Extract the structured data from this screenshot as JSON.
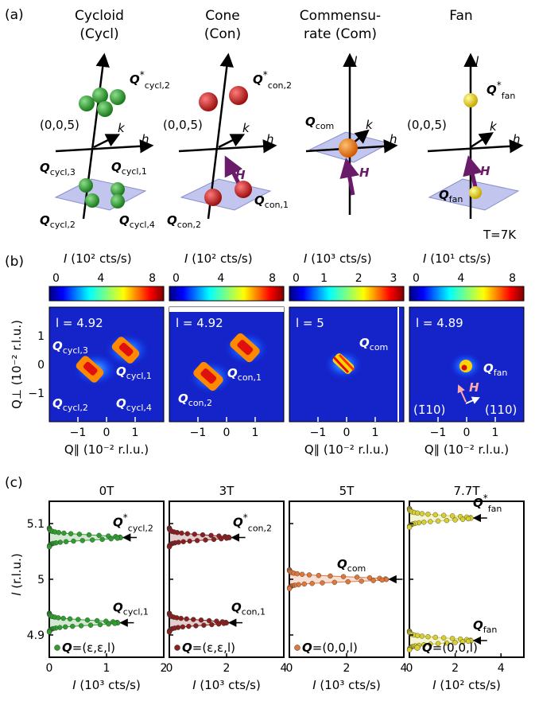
{
  "panel_labels": {
    "a": "(a)",
    "b": "(b)",
    "c": "(c)"
  },
  "phases": [
    {
      "line1": "Cycloid",
      "line2": "(Cycl)"
    },
    {
      "line1": "Cone",
      "line2": "(Con)"
    },
    {
      "line1": "Commensu-",
      "line2": "rate (Com)"
    },
    {
      "line1": "Fan",
      "line2": ""
    }
  ],
  "axes3d": {
    "l": "l",
    "h": "h",
    "k": "k",
    "H": "H",
    "origin": "(0,0,5)"
  },
  "q_labels": {
    "cycl_star": "cycl,2",
    "cycl1": "cycl,1",
    "cycl2": "cycl,2",
    "cycl3": "cycl,3",
    "cycl4": "cycl,4",
    "con_star": "con,2",
    "con1": "con,1",
    "con2": "con,2",
    "com": "com",
    "fan_star": "fan",
    "fan": "fan",
    "Q": "Q",
    "star": "*"
  },
  "temperature": "T=7K",
  "colorbars": [
    {
      "unit": "(10² cts/s)",
      "ticks": [
        "0",
        "4",
        "8"
      ]
    },
    {
      "unit": "(10² cts/s)",
      "ticks": [
        "0",
        "4",
        "8"
      ]
    },
    {
      "unit": "(10³ cts/s)",
      "ticks": [
        "0",
        "1",
        "2",
        "3"
      ]
    },
    {
      "unit": "(10¹ cts/s)",
      "ticks": [
        "0",
        "4",
        "8"
      ]
    }
  ],
  "maps": [
    {
      "l": "l = 4.92"
    },
    {
      "l": "l = 4.92"
    },
    {
      "l": "l = 5"
    },
    {
      "l": "l = 4.89"
    }
  ],
  "map_axes": {
    "x_label": "Q∥ (10⁻² r.l.u.)",
    "y_label": "Q⊥ (10⁻² r.l.u.)",
    "x_ticks": [
      "−1",
      "0",
      "1"
    ],
    "y_ticks": [
      "1",
      "0",
      "−1"
    ]
  },
  "directions": {
    "a": "(1̄10)",
    "b": "(110)",
    "H": "H"
  },
  "chart_data": [
    {
      "type": "scatter",
      "title": "0T",
      "xlabel": "I (10³ cts/s)",
      "ylabel": "l (r.l.u.)",
      "xlim": [
        0,
        2
      ],
      "ylim": [
        4.86,
        5.14
      ],
      "x_ticks": [
        "0",
        "1",
        "2"
      ],
      "y_ticks": [
        "5.1",
        "5",
        "4.9"
      ],
      "peaks": [
        {
          "l": 5.075,
          "I": 1.25,
          "label": "Q*cycl,2"
        },
        {
          "l": 4.922,
          "I": 1.2,
          "label": "Qcycl,1"
        }
      ],
      "legend": "Q=(ε,ε,l)",
      "color": "#2f9e2f"
    },
    {
      "type": "scatter",
      "title": "3T",
      "xlabel": "I (10³ cts/s)",
      "ylabel": "",
      "xlim": [
        0,
        4
      ],
      "ylim": [
        4.86,
        5.14
      ],
      "x_ticks": [
        "0",
        "2",
        "4"
      ],
      "peaks": [
        {
          "l": 5.075,
          "I": 2.1,
          "label": "Q*con,2"
        },
        {
          "l": 4.922,
          "I": 2.0,
          "label": "Qcon,1"
        }
      ],
      "legend": "Q=(ε,ε,l)",
      "color": "#8a1f1f"
    },
    {
      "type": "scatter",
      "title": "5T",
      "xlabel": "I (10³ cts/s)",
      "ylabel": "",
      "xlim": [
        0,
        4
      ],
      "ylim": [
        4.86,
        5.14
      ],
      "x_ticks": [
        "0",
        "2",
        "4"
      ],
      "peaks": [
        {
          "l": 5.0,
          "I": 3.4,
          "label": "Qcom"
        }
      ],
      "legend": "Q=(0,0,l)",
      "color": "#e0773a"
    },
    {
      "type": "scatter",
      "title": "7.7T",
      "xlabel": "I (10² cts/s)",
      "ylabel": "",
      "xlim": [
        0,
        5
      ],
      "ylim": [
        4.86,
        5.14
      ],
      "x_ticks": [
        "0",
        "2",
        "4"
      ],
      "peaks": [
        {
          "l": 5.11,
          "I": 2.7,
          "label": "Q*fan"
        },
        {
          "l": 4.89,
          "I": 2.7,
          "label": "Qfan"
        }
      ],
      "legend": "Q=(0,0,l)",
      "color": "#d8d030"
    }
  ]
}
